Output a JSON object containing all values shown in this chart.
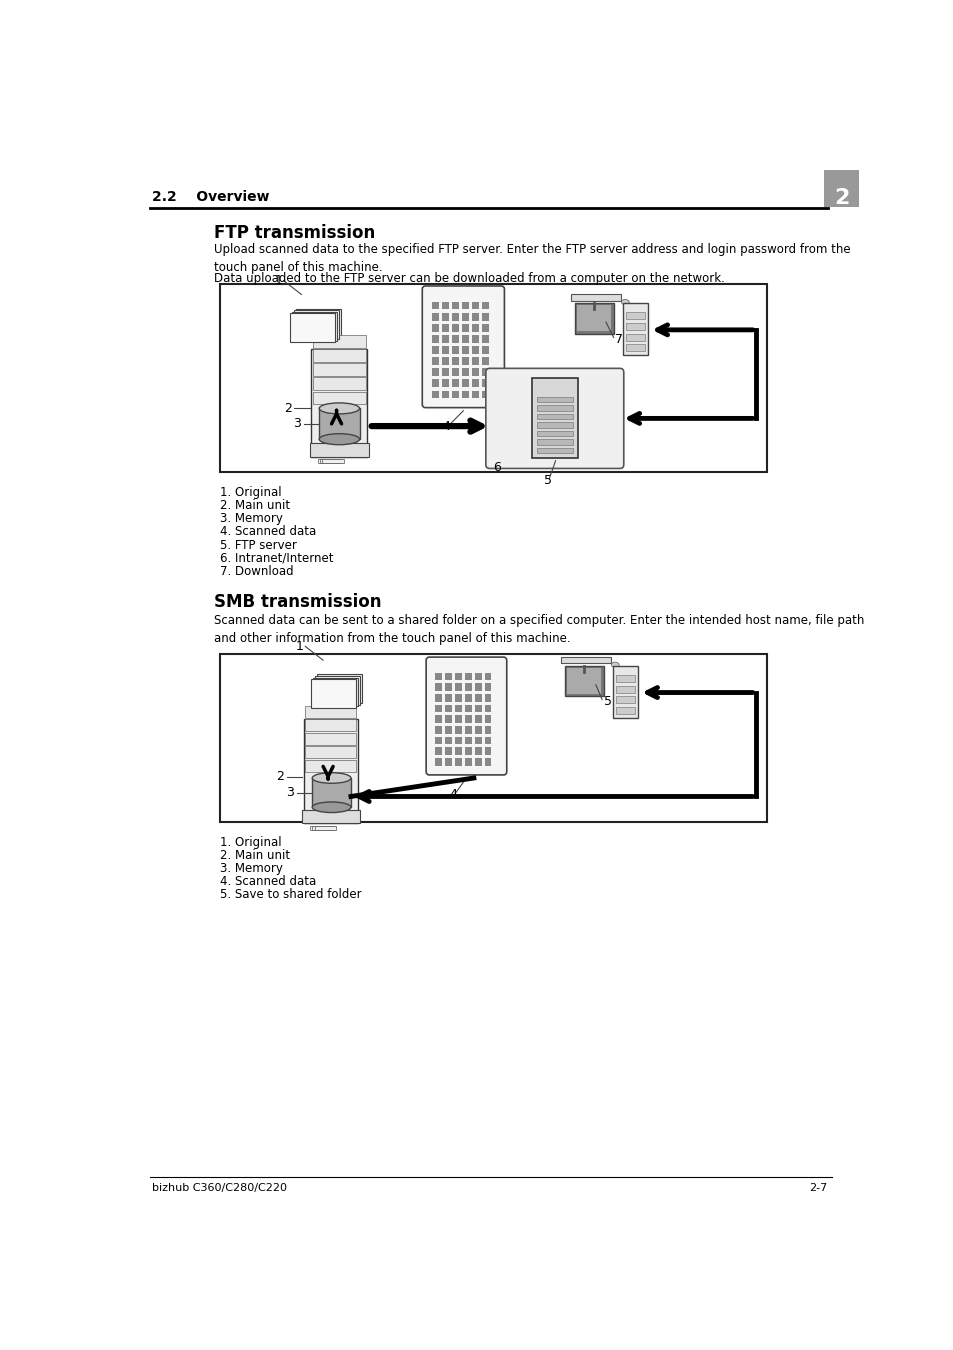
{
  "page_header": "2.2    Overview",
  "page_number": "2",
  "footer_left": "bizhub C360/C280/C220",
  "footer_right": "2-7",
  "ftp_title": "FTP transmission",
  "ftp_para1": "Upload scanned data to the specified FTP server. Enter the FTP server address and login password from the\ntouch panel of this machine.",
  "ftp_para2": "Data uploaded to the FTP server can be downloaded from a computer on the network.",
  "ftp_items": [
    "1. Original",
    "2. Main unit",
    "3. Memory",
    "4. Scanned data",
    "5. FTP server",
    "6. Intranet/Internet",
    "7. Download"
  ],
  "smb_title": "SMB transmission",
  "smb_para1": "Scanned data can be sent to a shared folder on a specified computer. Enter the intended host name, file path\nand other information from the touch panel of this machine.",
  "smb_items": [
    "1. Original",
    "2. Main unit",
    "3. Memory",
    "4. Scanned data",
    "5. Save to shared folder"
  ],
  "bg_color": "#ffffff"
}
